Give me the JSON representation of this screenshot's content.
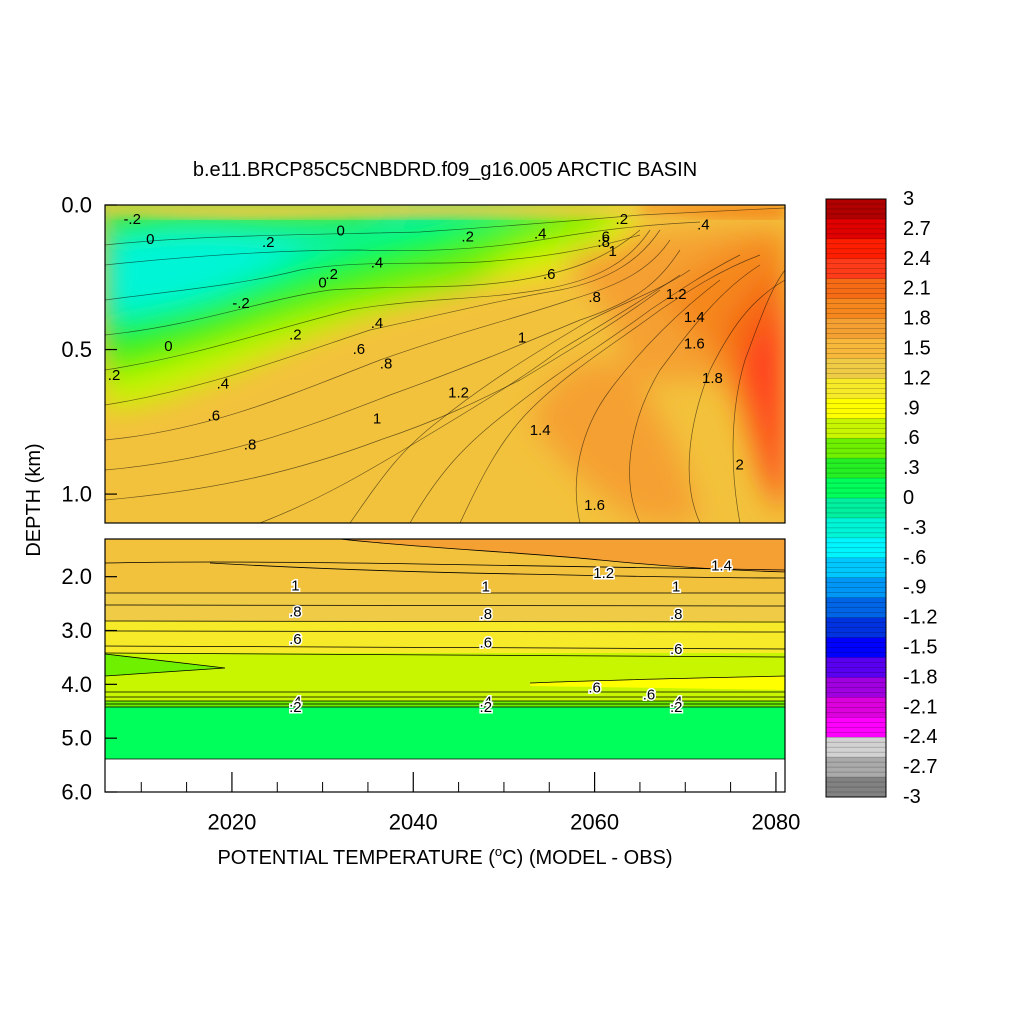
{
  "chart_data": {
    "type": "heatmap",
    "title": "b.e11.BRCP85C5CNBDRD.f09_g16.005 ARCTIC BASIN",
    "xlabel": "POTENTIAL TEMPERATURE (°C) (MODEL - OBS)",
    "xlabel_parts": {
      "before": "POTENTIAL TEMPERATURE (",
      "degree": "o",
      "after": "C) (MODEL - OBS)"
    },
    "ylabel": "DEPTH (km)",
    "xlim": [
      2006,
      2081
    ],
    "x_ticks": [
      2020,
      2040,
      2060,
      2080
    ],
    "upper_panel": {
      "ylim": [
        0.0,
        1.1
      ],
      "y_ticks": [
        "0.0",
        "0.5",
        "1.0"
      ]
    },
    "lower_panel": {
      "ylim": [
        1.3,
        6.0
      ],
      "y_ticks": [
        "2.0",
        "3.0",
        "4.0",
        "5.0",
        "6.0"
      ]
    },
    "colorbar": {
      "levels": [
        "3",
        "2.7",
        "2.4",
        "2.1",
        "1.8",
        "1.5",
        "1.2",
        ".9",
        ".6",
        ".3",
        "0",
        "-.3",
        "-.6",
        "-.9",
        "-1.2",
        "-1.5",
        "-1.8",
        "-2.1",
        "-2.4",
        "-2.7",
        "-3"
      ],
      "colors": [
        "#b00000",
        "#e00000",
        "#ff1e00",
        "#ff3c1a",
        "#f56b16",
        "#f5871e",
        "#f5a032",
        "#f7b83c",
        "#f0cc46",
        "#f7ea28",
        "#ffff00",
        "#c8f500",
        "#6ef000",
        "#24f024",
        "#00ff5a",
        "#00f0a0",
        "#00f5d7",
        "#00f5ff",
        "#00c8ff",
        "#0096f5",
        "#0064e6",
        "#0032e0",
        "#0000ff",
        "#5a00f0",
        "#a000e0",
        "#dc00dc",
        "#ff00ff",
        "#d2d2d2",
        "#aaaaaa",
        "#828282"
      ]
    },
    "upper_contour_labels": [
      {
        "text": "-.2",
        "x": 2009,
        "y": 0.05
      },
      {
        "text": "0",
        "x": 2011,
        "y": 0.12
      },
      {
        "text": ".2",
        "x": 2024,
        "y": 0.13
      },
      {
        "text": "0",
        "x": 2032,
        "y": 0.09
      },
      {
        "text": ".2",
        "x": 2046,
        "y": 0.11
      },
      {
        "text": ".4",
        "x": 2054,
        "y": 0.1
      },
      {
        "text": ".6",
        "x": 2061,
        "y": 0.11
      },
      {
        "text": ".8",
        "x": 2061,
        "y": 0.13
      },
      {
        "text": "1",
        "x": 2062,
        "y": 0.16
      },
      {
        "text": ".2",
        "x": 2063,
        "y": 0.05
      },
      {
        "text": ".4",
        "x": 2072,
        "y": 0.07
      },
      {
        "text": ".2",
        "x": 2031,
        "y": 0.24
      },
      {
        "text": ".4",
        "x": 2036,
        "y": 0.2
      },
      {
        "text": "0",
        "x": 2030,
        "y": 0.27
      },
      {
        "text": ".6",
        "x": 2055,
        "y": 0.24
      },
      {
        "text": "-.2",
        "x": 2021,
        "y": 0.34
      },
      {
        "text": ".8",
        "x": 2060,
        "y": 0.32
      },
      {
        "text": "1.2",
        "x": 2069,
        "y": 0.31
      },
      {
        "text": "1.4",
        "x": 2071,
        "y": 0.39
      },
      {
        "text": ".4",
        "x": 2036,
        "y": 0.41
      },
      {
        "text": ".2",
        "x": 2027,
        "y": 0.45
      },
      {
        "text": "1",
        "x": 2052,
        "y": 0.46
      },
      {
        "text": "1.6",
        "x": 2071,
        "y": 0.48
      },
      {
        "text": "0",
        "x": 2013,
        "y": 0.49
      },
      {
        "text": ".6",
        "x": 2034,
        "y": 0.5
      },
      {
        "text": ".8",
        "x": 2037,
        "y": 0.55
      },
      {
        "text": "1.8",
        "x": 2073,
        "y": 0.6
      },
      {
        "text": ".2",
        "x": 2007,
        "y": 0.59
      },
      {
        "text": ".4",
        "x": 2019,
        "y": 0.62
      },
      {
        "text": "1.2",
        "x": 2045,
        "y": 0.65
      },
      {
        "text": ".6",
        "x": 2018,
        "y": 0.73
      },
      {
        "text": "1",
        "x": 2036,
        "y": 0.74
      },
      {
        "text": "1.4",
        "x": 2054,
        "y": 0.78
      },
      {
        "text": ".8",
        "x": 2022,
        "y": 0.83
      },
      {
        "text": "2",
        "x": 2076,
        "y": 0.9
      },
      {
        "text": "1.6",
        "x": 2060,
        "y": 1.04
      }
    ],
    "lower_contour_labels": [
      {
        "text": "1.2",
        "x": 2061,
        "y": 1.94
      },
      {
        "text": "1.4",
        "x": 2074,
        "y": 1.8
      },
      {
        "text": "1",
        "x": 2027,
        "y": 2.17
      },
      {
        "text": "1",
        "x": 2048,
        "y": 2.19
      },
      {
        "text": "1",
        "x": 2069,
        "y": 2.19
      },
      {
        "text": ".8",
        "x": 2027,
        "y": 2.66
      },
      {
        "text": ".8",
        "x": 2048,
        "y": 2.7
      },
      {
        "text": ".8",
        "x": 2069,
        "y": 2.7
      },
      {
        "text": ".6",
        "x": 2027,
        "y": 3.17
      },
      {
        "text": ".6",
        "x": 2048,
        "y": 3.23
      },
      {
        "text": ".6",
        "x": 2069,
        "y": 3.35
      },
      {
        "text": ".6",
        "x": 2060,
        "y": 4.07
      },
      {
        "text": ".6",
        "x": 2066,
        "y": 4.2
      },
      {
        "text": ".4",
        "x": 2027,
        "y": 4.33
      },
      {
        "text": ".2",
        "x": 2027,
        "y": 4.43
      },
      {
        "text": ".4",
        "x": 2048,
        "y": 4.33
      },
      {
        "text": ".2",
        "x": 2048,
        "y": 4.43
      },
      {
        "text": ".4",
        "x": 2069,
        "y": 4.33
      },
      {
        "text": ".2",
        "x": 2069,
        "y": 4.43
      }
    ]
  }
}
